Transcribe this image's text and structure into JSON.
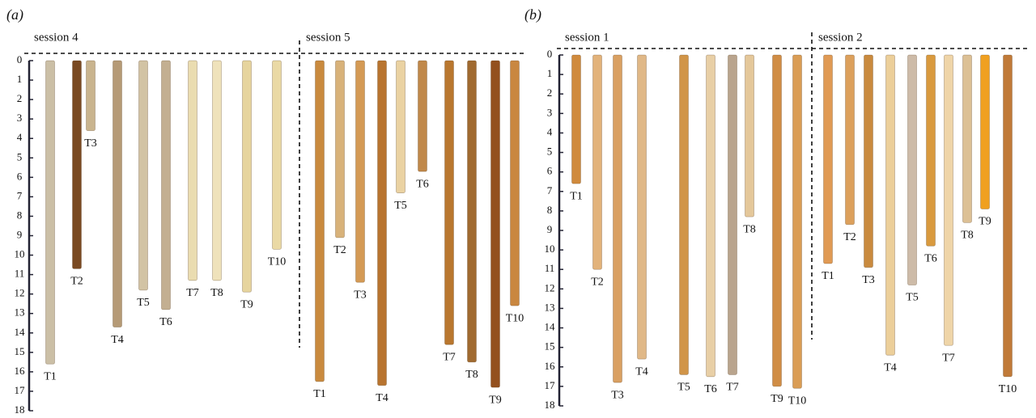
{
  "panels": [
    {
      "label": "(a)",
      "ylim": [
        0,
        18
      ],
      "ruler": [
        0,
        1,
        2,
        3,
        4,
        5,
        6,
        7,
        8,
        9,
        10,
        11,
        12,
        13,
        14,
        15,
        16,
        17,
        18
      ],
      "sessions": [
        {
          "title": "session 4",
          "sticks": [
            {
              "name": "T1",
              "end": 15.6,
              "color": "#cbbfa6"
            },
            {
              "name": "T2",
              "end": 10.7,
              "color": "#7a4a22"
            },
            {
              "name": "T3",
              "end": 3.6,
              "color": "#c9b48e"
            },
            {
              "name": "T4",
              "end": 13.7,
              "color": "#b59a76"
            },
            {
              "name": "T5",
              "end": 11.8,
              "color": "#d2c3a4"
            },
            {
              "name": "T6",
              "end": 12.8,
              "color": "#c3af91"
            },
            {
              "name": "T7",
              "end": 11.3,
              "color": "#eadcb0"
            },
            {
              "name": "T8",
              "end": 11.3,
              "color": "#efe2bb"
            },
            {
              "name": "T9",
              "end": 11.9,
              "color": "#e6d49e"
            },
            {
              "name": "T10",
              "end": 9.7,
              "color": "#ead9a5"
            }
          ]
        },
        {
          "title": "session 5",
          "sticks": [
            {
              "name": "T1",
              "end": 16.5,
              "color": "#c98a3e"
            },
            {
              "name": "T2",
              "end": 9.1,
              "color": "#d8b27a"
            },
            {
              "name": "T3",
              "end": 11.4,
              "color": "#d49a55"
            },
            {
              "name": "T4",
              "end": 16.7,
              "color": "#b8742f"
            },
            {
              "name": "T5",
              "end": 6.8,
              "color": "#ead2a2"
            },
            {
              "name": "T6",
              "end": 5.7,
              "color": "#c0884a"
            },
            {
              "name": "T7",
              "end": 14.6,
              "color": "#b9772f"
            },
            {
              "name": "T8",
              "end": 15.5,
              "color": "#a06a30"
            },
            {
              "name": "T9",
              "end": 16.8,
              "color": "#93501e"
            },
            {
              "name": "T10",
              "end": 12.6,
              "color": "#c98740"
            }
          ]
        }
      ]
    },
    {
      "label": "(b)",
      "ylim": [
        0,
        18
      ],
      "ruler": [
        0,
        1,
        2,
        3,
        4,
        5,
        6,
        7,
        8,
        9,
        10,
        11,
        12,
        13,
        14,
        15,
        16,
        17,
        18
      ],
      "sessions": [
        {
          "title": "session 1",
          "sticks": [
            {
              "name": "T1",
              "end": 6.6,
              "color": "#d08a3c"
            },
            {
              "name": "T2",
              "end": 11.0,
              "color": "#e2b27a"
            },
            {
              "name": "T3",
              "end": 16.8,
              "color": "#d9a062"
            },
            {
              "name": "T4",
              "end": 15.6,
              "color": "#e0b887"
            },
            {
              "name": "T5",
              "end": 16.4,
              "color": "#d19548"
            },
            {
              "name": "T6",
              "end": 16.5,
              "color": "#e8cfa6"
            },
            {
              "name": "T7",
              "end": 16.4,
              "color": "#b9a48d"
            },
            {
              "name": "T8",
              "end": 8.3,
              "color": "#e4c79a"
            },
            {
              "name": "T9",
              "end": 17.0,
              "color": "#d08d45"
            },
            {
              "name": "T10",
              "end": 17.1,
              "color": "#da9d55"
            }
          ]
        },
        {
          "title": "session 2",
          "sticks": [
            {
              "name": "T1",
              "end": 10.7,
              "color": "#e09a54"
            },
            {
              "name": "T2",
              "end": 8.7,
              "color": "#dca05c"
            },
            {
              "name": "T3",
              "end": 10.9,
              "color": "#c98a3e"
            },
            {
              "name": "T4",
              "end": 15.4,
              "color": "#eccf9a"
            },
            {
              "name": "T5",
              "end": 11.8,
              "color": "#cdbba8"
            },
            {
              "name": "T6",
              "end": 9.8,
              "color": "#d99a3e"
            },
            {
              "name": "T7",
              "end": 14.9,
              "color": "#efd5a8"
            },
            {
              "name": "T8",
              "end": 8.6,
              "color": "#dcc095"
            },
            {
              "name": "T9",
              "end": 7.9,
              "color": "#f0a020"
            },
            {
              "name": "T10",
              "end": 16.5,
              "color": "#c07a38"
            }
          ]
        }
      ]
    }
  ]
}
